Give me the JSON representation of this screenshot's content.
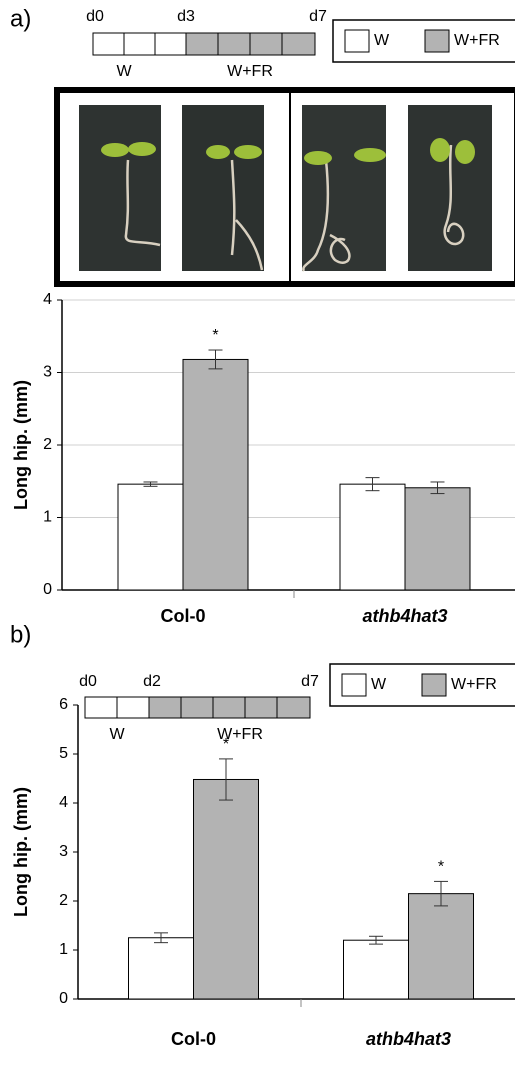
{
  "figure": {
    "panels": [
      {
        "label": "a)",
        "timeline": {
          "day_labels": [
            "d0",
            "d3",
            "d7"
          ],
          "phase_labels": [
            "W",
            "W+FR"
          ]
        }
      },
      {
        "label": "b)",
        "timeline": {
          "day_labels": [
            "d0",
            "d2",
            "d7"
          ],
          "phase_labels": [
            "W",
            "W+FR"
          ]
        }
      }
    ]
  },
  "chart_data": [
    {
      "type": "bar",
      "y_label": "Long hip. (mm)",
      "categories": [
        "Col-0",
        "athb4hat3"
      ],
      "series": [
        {
          "name": "W",
          "color": "#ffffff",
          "values": [
            1.46,
            1.46
          ],
          "errors": [
            0.03,
            0.09
          ],
          "significant": [
            false,
            false
          ]
        },
        {
          "name": "W+FR",
          "color": "#b3b3b3",
          "values": [
            3.18,
            1.41
          ],
          "errors": [
            0.13,
            0.08
          ],
          "significant": [
            true,
            false
          ]
        }
      ],
      "significance_mark": "*",
      "ylim": [
        0,
        4
      ],
      "yticks": [
        0,
        1,
        2,
        3,
        4
      ],
      "grid": true
    },
    {
      "type": "bar",
      "y_label": "Long hip. (mm)",
      "categories": [
        "Col-0",
        "athb4hat3"
      ],
      "series": [
        {
          "name": "W",
          "color": "#ffffff",
          "values": [
            1.25,
            1.2
          ],
          "errors": [
            0.1,
            0.08
          ],
          "significant": [
            false,
            false
          ]
        },
        {
          "name": "W+FR",
          "color": "#b3b3b3",
          "values": [
            4.48,
            2.15
          ],
          "errors": [
            0.42,
            0.25
          ],
          "significant": [
            true,
            true
          ]
        }
      ],
      "significance_mark": "*",
      "ylim": [
        0,
        6
      ],
      "yticks": [
        0,
        1,
        2,
        3,
        4,
        5,
        6
      ],
      "grid": false
    }
  ]
}
